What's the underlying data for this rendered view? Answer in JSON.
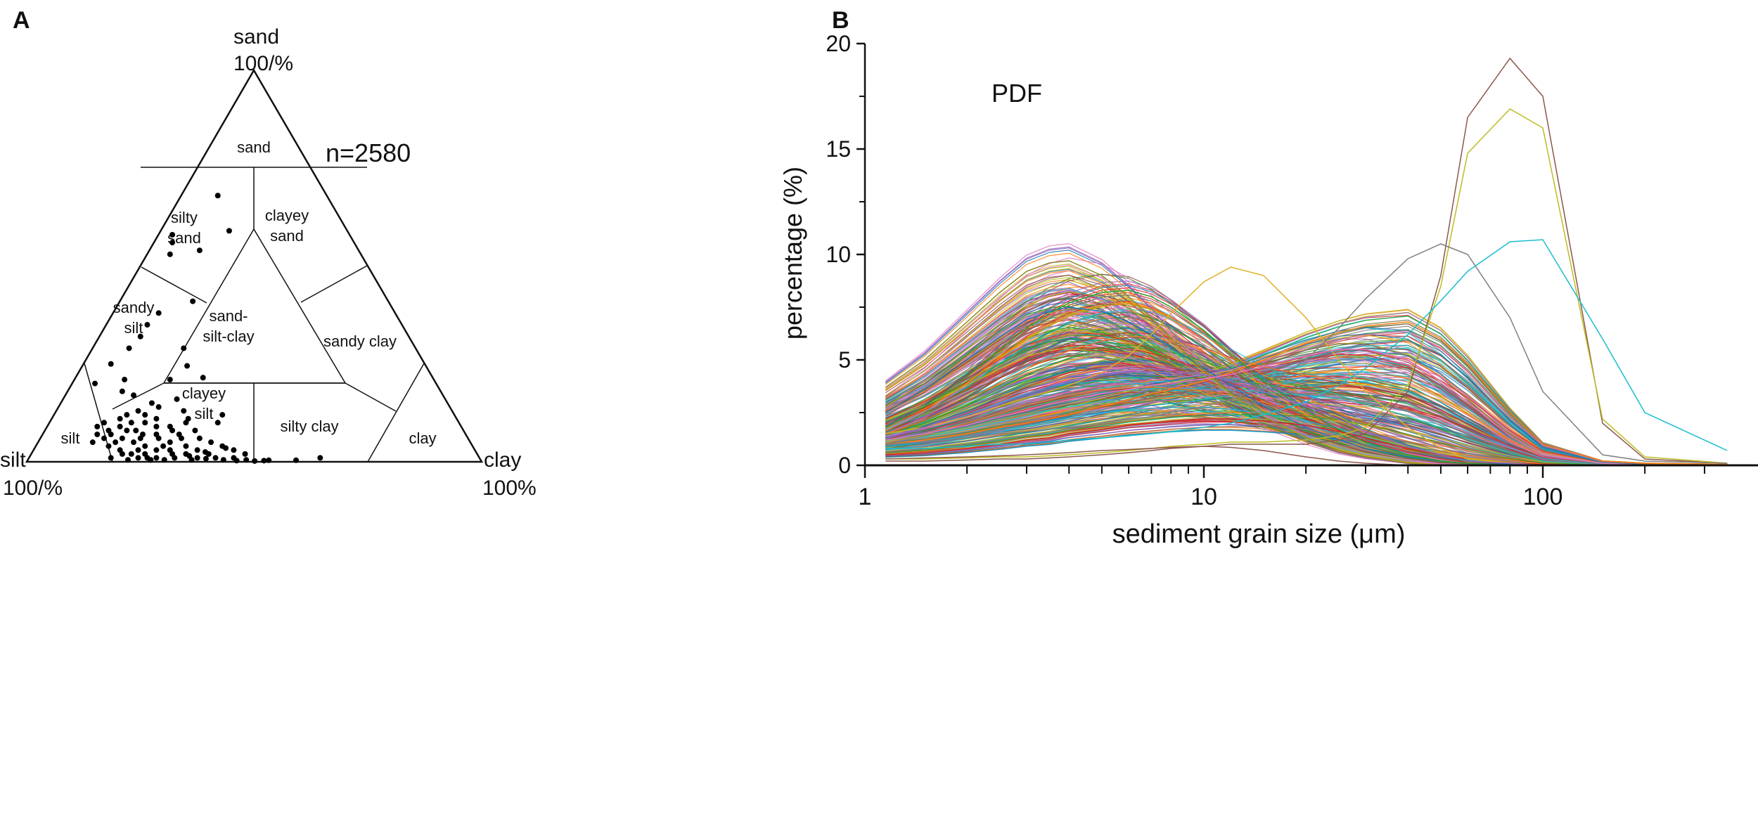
{
  "panel_labels": {
    "a": "A",
    "b": "B"
  },
  "chart_data": [
    {
      "type": "scatter",
      "subtype": "ternary",
      "title": "",
      "n_label": "n=2580",
      "vertices": {
        "top": {
          "name": "sand",
          "value": "100/%"
        },
        "left": {
          "name": "silt",
          "value": "100/%"
        },
        "right": {
          "name": "clay",
          "value": "100%"
        }
      },
      "regions": [
        "sand",
        "silty sand",
        "clayey sand",
        "sandy silt",
        "sand-silt-clay",
        "sandy clay",
        "silt",
        "clayey silt",
        "silty clay",
        "clay"
      ],
      "region_label_lines": {
        "sand": [
          "sand"
        ],
        "silty sand": [
          "silty",
          "sand"
        ],
        "clayey sand": [
          "clayey",
          "sand"
        ],
        "sandy silt": [
          "sandy",
          "silt"
        ],
        "sand-silt-clay": [
          "sand-",
          "silt-clay"
        ],
        "sandy clay": [
          "sandy clay"
        ],
        "silt": [
          "silt"
        ],
        "clayey silt": [
          "clayey",
          "silt"
        ],
        "silty clay": [
          "silty clay"
        ],
        "clay": [
          "clay"
        ]
      },
      "point_fields": [
        "sand_pct",
        "clay_pct"
      ],
      "points": [
        [
          68,
          8
        ],
        [
          58,
          3
        ],
        [
          59,
          15
        ],
        [
          54,
          11
        ],
        [
          56,
          4
        ],
        [
          53,
          5
        ],
        [
          41,
          16
        ],
        [
          38,
          10
        ],
        [
          35,
          9
        ],
        [
          29,
          20
        ],
        [
          21.5,
          28
        ],
        [
          24.5,
          23
        ],
        [
          29,
          8
        ],
        [
          32,
          9
        ],
        [
          21,
          11
        ],
        [
          21,
          21
        ],
        [
          12,
          37
        ],
        [
          1,
          64
        ],
        [
          0.4,
          59
        ],
        [
          0.4,
          53
        ],
        [
          10,
          37
        ],
        [
          10,
          30
        ],
        [
          20,
          5
        ],
        [
          25,
          6
        ],
        [
          18,
          12
        ],
        [
          17,
          15
        ],
        [
          8,
          14
        ],
        [
          9,
          16
        ],
        [
          7,
          15
        ],
        [
          6,
          14
        ],
        [
          10,
          18
        ],
        [
          8,
          20
        ],
        [
          6,
          18
        ],
        [
          5,
          17
        ],
        [
          4,
          16
        ],
        [
          7,
          22
        ],
        [
          5,
          21
        ],
        [
          3,
          19
        ],
        [
          4,
          24
        ],
        [
          2,
          22
        ],
        [
          6,
          26
        ],
        [
          3,
          27
        ],
        [
          2,
          25
        ],
        [
          1,
          24
        ],
        [
          5,
          29
        ],
        [
          3,
          30
        ],
        [
          2,
          31
        ],
        [
          1,
          28
        ],
        [
          4,
          33
        ],
        [
          2,
          34
        ],
        [
          1,
          32
        ],
        [
          0.5,
          30
        ],
        [
          3,
          36
        ],
        [
          1,
          37
        ],
        [
          2,
          39
        ],
        [
          0.5,
          36
        ],
        [
          1,
          41
        ],
        [
          0.5,
          43
        ],
        [
          0.3,
          46
        ],
        [
          0.5,
          48
        ],
        [
          0.2,
          50
        ],
        [
          0.3,
          52
        ],
        [
          12,
          20
        ],
        [
          11,
          23
        ],
        [
          13,
          18
        ],
        [
          14,
          22
        ],
        [
          9,
          27
        ],
        [
          7,
          30
        ],
        [
          8,
          33
        ],
        [
          6,
          35
        ],
        [
          5,
          38
        ],
        [
          10,
          12
        ],
        [
          9,
          11
        ],
        [
          11,
          15
        ],
        [
          7,
          12
        ],
        [
          12,
          16
        ],
        [
          15,
          20
        ],
        [
          16,
          25
        ],
        [
          13,
          28
        ],
        [
          4,
          41
        ],
        [
          3,
          44
        ],
        [
          2,
          47
        ],
        [
          1,
          45
        ],
        [
          2,
          20
        ],
        [
          1,
          18
        ],
        [
          0.5,
          22
        ],
        [
          9,
          24
        ],
        [
          11,
          30
        ],
        [
          4,
          28
        ],
        [
          6,
          31
        ],
        [
          3,
          23
        ],
        [
          5,
          12
        ],
        [
          8,
          18
        ],
        [
          10,
          21
        ],
        [
          1,
          26
        ],
        [
          0.5,
          27
        ],
        [
          1.5,
          35
        ],
        [
          2.5,
          38
        ],
        [
          3.5,
          42
        ],
        [
          0.8,
          39
        ],
        [
          7,
          25
        ],
        [
          6,
          22
        ],
        [
          8,
          28
        ]
      ]
    },
    {
      "type": "line",
      "title": "PDF",
      "xlabel": "sediment grain size (μm)",
      "ylabel": "percentage (%)",
      "xscale": "log",
      "xlim": [
        1,
        350
      ],
      "ylim": [
        0,
        20
      ],
      "xticks": [
        "1",
        "10",
        "100"
      ],
      "yticks": [
        "0",
        "5",
        "10",
        "15",
        "20"
      ],
      "grid": false,
      "n_curves_shown_note": "representative series; dense fan of 2580 curves",
      "x": [
        1.15,
        1.5,
        2,
        2.5,
        3,
        3.5,
        4,
        5,
        6,
        7,
        8,
        10,
        12,
        15,
        20,
        25,
        30,
        40,
        50,
        60,
        80,
        100,
        150,
        200,
        350
      ],
      "series": [
        {
          "name": "s1",
          "color": "#1f77b4",
          "values": [
            2.5,
            3.6,
            5.0,
            6.1,
            6.9,
            7.3,
            7.5,
            7.3,
            6.8,
            6.2,
            5.6,
            4.6,
            3.8,
            2.8,
            1.8,
            1.2,
            0.8,
            0.4,
            0.2,
            0.1,
            0.05,
            0.02,
            0,
            0,
            0
          ]
        },
        {
          "name": "s2",
          "color": "#ff7f0e",
          "values": [
            1.0,
            1.2,
            1.5,
            1.8,
            2.0,
            2.2,
            2.4,
            2.8,
            3.1,
            3.4,
            3.6,
            4.0,
            4.4,
            5.0,
            5.8,
            6.3,
            6.6,
            6.8,
            6.0,
            4.8,
            2.5,
            1.0,
            0.2,
            0.1,
            0.05
          ]
        },
        {
          "name": "s3",
          "color": "#2ca02c",
          "values": [
            1.8,
            2.8,
            4.2,
            5.5,
            6.5,
            7.2,
            7.7,
            8.2,
            8.3,
            8.0,
            7.5,
            6.4,
            5.3,
            4.0,
            2.6,
            1.7,
            1.1,
            0.5,
            0.2,
            0.1,
            0,
            0,
            0,
            0,
            0
          ]
        },
        {
          "name": "s4",
          "color": "#d62728",
          "values": [
            0.5,
            0.6,
            0.8,
            1.0,
            1.2,
            1.3,
            1.5,
            1.7,
            1.9,
            2.0,
            2.1,
            2.2,
            2.2,
            2.1,
            1.9,
            1.6,
            1.3,
            0.8,
            0.5,
            0.3,
            0.1,
            0.05,
            0,
            0,
            0
          ]
        },
        {
          "name": "s5",
          "color": "#8c564b",
          "values": [
            0.2,
            0.2,
            0.25,
            0.3,
            0.3,
            0.35,
            0.4,
            0.5,
            0.6,
            0.7,
            0.8,
            0.9,
            1.0,
            1.0,
            1.0,
            1.2,
            1.5,
            3.5,
            9,
            16.5,
            19.3,
            17.5,
            2,
            0.3,
            0.1
          ]
        },
        {
          "name": "s6",
          "color": "#bcbd22",
          "values": [
            0.3,
            0.3,
            0.35,
            0.4,
            0.4,
            0.45,
            0.5,
            0.6,
            0.7,
            0.8,
            0.9,
            1.0,
            1.1,
            1.1,
            1.2,
            1.4,
            1.8,
            3.8,
            8.5,
            14.8,
            16.9,
            16.0,
            2.2,
            0.4,
            0.1
          ]
        },
        {
          "name": "s7",
          "color": "#8b8b2a",
          "values": [
            3.7,
            5.0,
            6.8,
            8.2,
            9.2,
            9.6,
            9.7,
            9.0,
            8.0,
            7.0,
            6.0,
            4.5,
            3.4,
            2.3,
            1.3,
            0.7,
            0.4,
            0.1,
            0,
            0,
            0,
            0,
            0,
            0,
            0
          ]
        },
        {
          "name": "s8",
          "color": "#e0b020",
          "values": [
            1.5,
            1.8,
            2.3,
            2.8,
            3.2,
            3.5,
            3.8,
            4.4,
            5.2,
            6.2,
            7.2,
            8.7,
            9.4,
            9.0,
            7.0,
            5.0,
            3.5,
            1.8,
            0.8,
            0.3,
            0.1,
            0,
            0,
            0,
            0
          ]
        },
        {
          "name": "s9",
          "color": "#9467bd",
          "values": [
            1.3,
            1.8,
            2.5,
            3.1,
            3.6,
            3.9,
            4.2,
            4.5,
            4.6,
            4.6,
            4.5,
            4.3,
            4.0,
            3.5,
            2.8,
            2.2,
            1.6,
            0.9,
            0.5,
            0.2,
            0.1,
            0,
            0,
            0,
            0
          ]
        },
        {
          "name": "s10",
          "color": "#7f7f7f",
          "values": [
            1.0,
            1.1,
            1.3,
            1.5,
            1.6,
            1.7,
            1.8,
            2.0,
            2.2,
            2.3,
            2.5,
            2.8,
            3.1,
            3.7,
            5.0,
            6.5,
            7.9,
            9.8,
            10.5,
            10.0,
            7.0,
            3.5,
            0.5,
            0.2,
            0.1
          ]
        },
        {
          "name": "s11",
          "color": "#17becf",
          "values": [
            0.8,
            0.8,
            0.9,
            1.0,
            1.0,
            1.1,
            1.2,
            1.3,
            1.4,
            1.5,
            1.6,
            1.8,
            2.0,
            2.4,
            3.0,
            3.8,
            4.6,
            6.2,
            7.8,
            9.2,
            10.6,
            10.7,
            6.0,
            2.5,
            0.7
          ]
        },
        {
          "name": "s12",
          "color": "#e377c2",
          "values": [
            1.2,
            1.5,
            1.9,
            2.3,
            2.6,
            2.9,
            3.1,
            3.4,
            3.6,
            3.8,
            3.9,
            4.1,
            4.3,
            4.7,
            5.2,
            5.5,
            5.5,
            5.0,
            4.0,
            3.0,
            1.4,
            0.5,
            0.1,
            0,
            0
          ]
        },
        {
          "name": "s13",
          "color": "#8c564b",
          "values": [
            0.3,
            0.35,
            0.4,
            0.45,
            0.5,
            0.55,
            0.6,
            0.7,
            0.75,
            0.8,
            0.85,
            0.9,
            0.85,
            0.7,
            0.4,
            0.2,
            0.1,
            0,
            0,
            0,
            0,
            0,
            0,
            0,
            0
          ]
        }
      ]
    }
  ]
}
